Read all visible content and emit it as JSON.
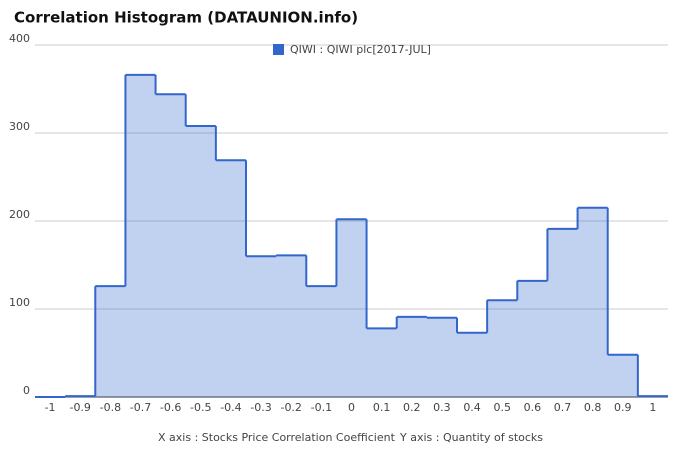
{
  "chart_data": {
    "type": "step-area",
    "title": "Correlation Histogram (DATAUNION.info)",
    "x": [
      -1,
      -0.9,
      -0.8,
      -0.7,
      -0.6,
      -0.5,
      -0.4,
      -0.3,
      -0.2,
      -0.1,
      0,
      0.1,
      0.2,
      0.3,
      0.4,
      0.5,
      0.6,
      0.7,
      0.8,
      0.9,
      1
    ],
    "series": [
      {
        "name": "QIWI : QIWI plc[2017-JUL]",
        "color": "#3366cc",
        "values": [
          0,
          1,
          126,
          366,
          344,
          308,
          269,
          160,
          161,
          126,
          202,
          78,
          91,
          90,
          73,
          110,
          132,
          191,
          215,
          48,
          1
        ]
      }
    ],
    "xlim": [
      -1.05,
      1.05
    ],
    "xticks": [
      -1,
      -0.9,
      -0.8,
      -0.7,
      -0.6,
      -0.5,
      -0.4,
      -0.3,
      -0.2,
      -0.1,
      0,
      0.1,
      0.2,
      0.3,
      0.4,
      0.5,
      0.6,
      0.7,
      0.8,
      0.9,
      1
    ],
    "ylim": [
      0,
      400
    ],
    "yticks": [
      0,
      100,
      200,
      300,
      400
    ],
    "grid": true,
    "x_axis_label": "X axis : Stocks Price Correlation Coefficient",
    "y_axis_label": "Y axis : Quantity of stocks"
  }
}
